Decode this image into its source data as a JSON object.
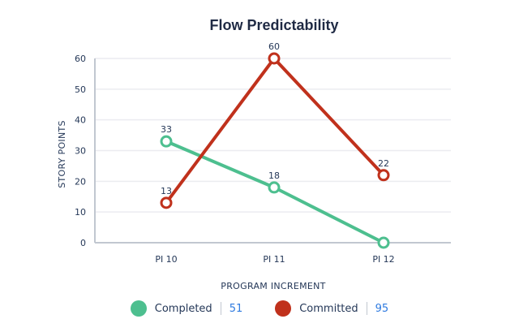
{
  "chart_data": {
    "type": "line",
    "title": "Flow Predictability",
    "xlabel": "PROGRAM INCREMENT",
    "ylabel": "STORY POINTS",
    "categories": [
      "PI 10",
      "PI 11",
      "PI 12"
    ],
    "ylim": [
      0,
      60
    ],
    "yticks": [
      0,
      10,
      20,
      30,
      40,
      50,
      60
    ],
    "grid": true,
    "series": [
      {
        "name": "Completed",
        "values": [
          33,
          18,
          0
        ],
        "color": "#4dbf8f",
        "total": "51",
        "data_labels": [
          "33",
          "18",
          ""
        ]
      },
      {
        "name": "Committed",
        "values": [
          13,
          60,
          22
        ],
        "color": "#c0311c",
        "total": "95",
        "data_labels": [
          "13",
          "60",
          "22"
        ]
      }
    ]
  }
}
